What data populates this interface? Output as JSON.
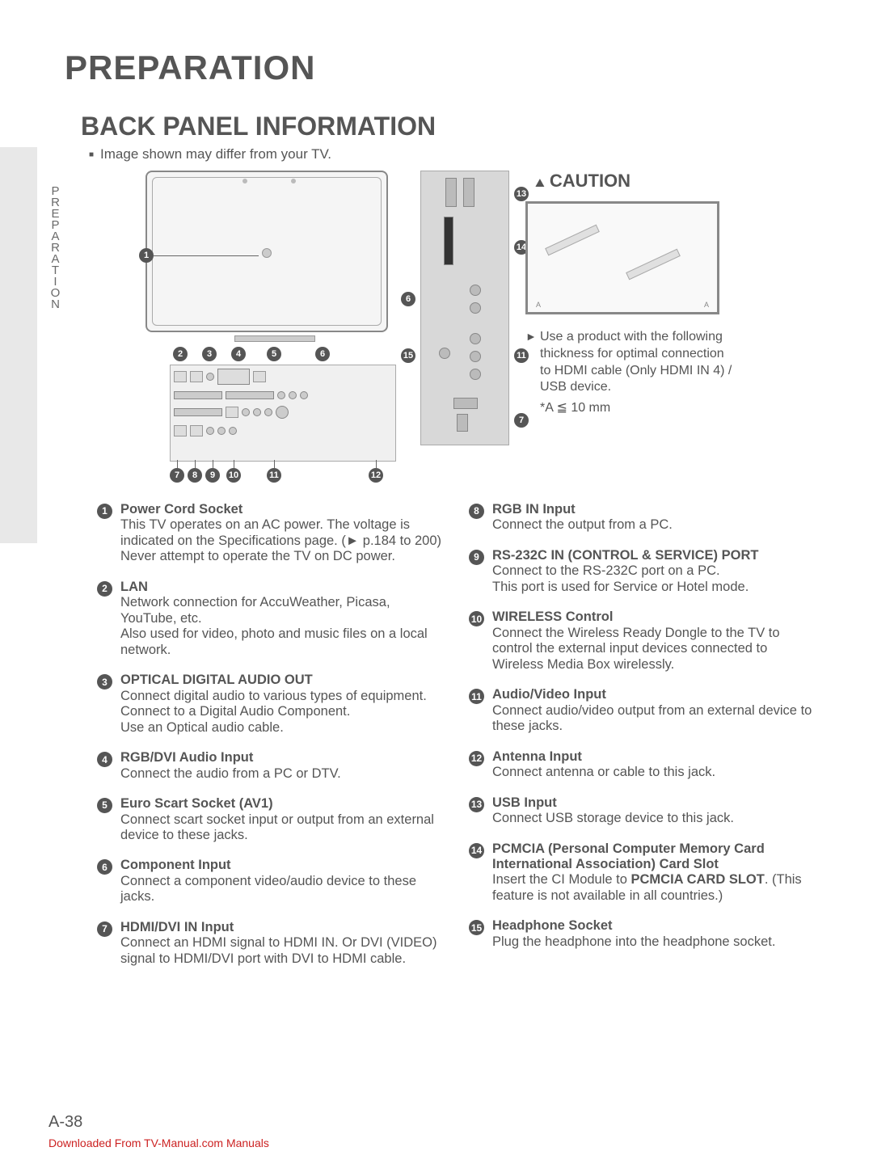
{
  "page": {
    "main_title": "PREPARATION",
    "sub_title": "BACK PANEL INFORMATION",
    "note": "Image shown may differ from your TV.",
    "side_label": "PREPARATION",
    "page_number": "A-38",
    "footer": "Downloaded From TV-Manual.com Manuals"
  },
  "caution": {
    "title": "CAUTION",
    "text": "Use a product with the following thickness for optimal connection to HDMI cable (Only HDMI IN 4) / USB device.",
    "spec": "*A ≦ 10 mm"
  },
  "diagram": {
    "back_callouts": [
      "1",
      "2",
      "3",
      "4",
      "5",
      "6",
      "7",
      "8",
      "9",
      "10",
      "11",
      "12"
    ],
    "side_callouts": [
      "6",
      "7",
      "11",
      "13",
      "14",
      "15"
    ]
  },
  "items_left": [
    {
      "n": "1",
      "title": "Power Cord Socket",
      "desc": "This TV operates on an AC power. The voltage is indicated on the Specifications page. (► p.184 to 200) Never attempt to operate the TV on DC power."
    },
    {
      "n": "2",
      "title": "LAN",
      "desc": "Network connection for AccuWeather, Picasa, YouTube, etc.\nAlso used for video, photo and music files on a local network."
    },
    {
      "n": "3",
      "title": "OPTICAL DIGITAL AUDIO OUT",
      "desc": "Connect digital audio to various types of equipment.\nConnect to a Digital Audio Component.\nUse an Optical audio cable."
    },
    {
      "n": "4",
      "title": "RGB/DVI Audio Input",
      "desc": "Connect the audio from a PC or DTV."
    },
    {
      "n": "5",
      "title": "Euro Scart Socket (AV1)",
      "desc": "Connect scart socket input or output from an external device to these jacks."
    },
    {
      "n": "6",
      "title": "Component Input",
      "desc": "Connect a component video/audio device to these jacks."
    },
    {
      "n": "7",
      "title": "HDMI/DVI IN Input",
      "desc": "Connect an HDMI signal to HDMI IN. Or DVI (VIDEO) signal to HDMI/DVI port with DVI to HDMI cable."
    }
  ],
  "items_right": [
    {
      "n": "8",
      "title": "RGB IN Input",
      "desc": "Connect the output from a PC."
    },
    {
      "n": "9",
      "title": "RS-232C IN (CONTROL & SERVICE) PORT",
      "desc": "Connect to the RS-232C port on a PC.\nThis port is used for Service or Hotel mode."
    },
    {
      "n": "10",
      "title": "WIRELESS Control",
      "desc": "Connect the Wireless Ready Dongle to the TV to control the external input devices connected to Wireless Media Box wirelessly."
    },
    {
      "n": "11",
      "title": "Audio/Video Input",
      "desc": "Connect audio/video output from an external device to these jacks."
    },
    {
      "n": "12",
      "title": "Antenna Input",
      "desc": "Connect antenna or cable to this jack."
    },
    {
      "n": "13",
      "title": "USB Input",
      "desc": "Connect USB storage device to this jack."
    },
    {
      "n": "14",
      "title": "PCMCIA (Personal Computer Memory Card International Association) Card Slot",
      "desc": "Insert the CI Module to PCMCIA CARD SLOT.\n(This feature is not available in all countries.)",
      "bold_in_desc": "PCMCIA CARD SLOT"
    },
    {
      "n": "15",
      "title": "Headphone Socket",
      "desc": "Plug the headphone into the headphone socket."
    }
  ],
  "colors": {
    "text": "#555555",
    "accent_red": "#c22222",
    "panel_bg": "#e8e8e8"
  }
}
